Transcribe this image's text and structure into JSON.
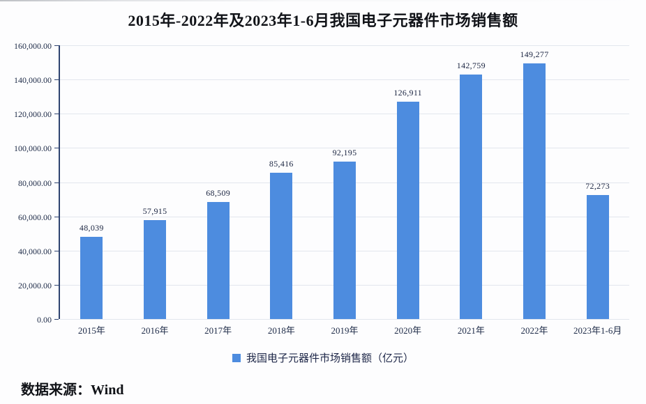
{
  "title": "2015年-2022年及2023年1-6月我国电子元器件市场销售额",
  "chart_data": {
    "type": "bar",
    "title": "2015年-2022年及2023年1-6月我国电子元器件市场销售额",
    "categories": [
      "2015年",
      "2016年",
      "2017年",
      "2018年",
      "2019年",
      "2020年",
      "2021年",
      "2022年",
      "2023年1-6月"
    ],
    "series": [
      {
        "name": "我国电子元器件市场销售额（亿元）",
        "values": [
          48039,
          57915,
          68509,
          85416,
          92195,
          126911,
          142759,
          149277,
          72273
        ],
        "value_labels": [
          "48,039",
          "57,915",
          "68,509",
          "85,416",
          "92,195",
          "126,911",
          "142,759",
          "149,277",
          "72,273"
        ]
      }
    ],
    "xlabel": "",
    "ylabel": "",
    "ylim": [
      0,
      160000
    ],
    "ytick_step": 20000,
    "ytick_labels": [
      "0.00",
      "20,000.00",
      "40,000.00",
      "60,000.00",
      "80,000.00",
      "100,000.00",
      "120,000.00",
      "140,000.00",
      "160,000.00"
    ],
    "grid": true,
    "legend_position": "bottom",
    "bar_color": "#4d8cdf"
  },
  "legend": {
    "label": "我国电子元器件市场销售额（亿元）"
  },
  "source": {
    "label": "数据来源：Wind"
  },
  "colors": {
    "bar": "#4d8cdf",
    "gridline": "#e2e6ed",
    "axis": "#2e4370",
    "title_text": "#111318",
    "tick_text": "#1d2a47",
    "background": "#fdfdfe"
  }
}
